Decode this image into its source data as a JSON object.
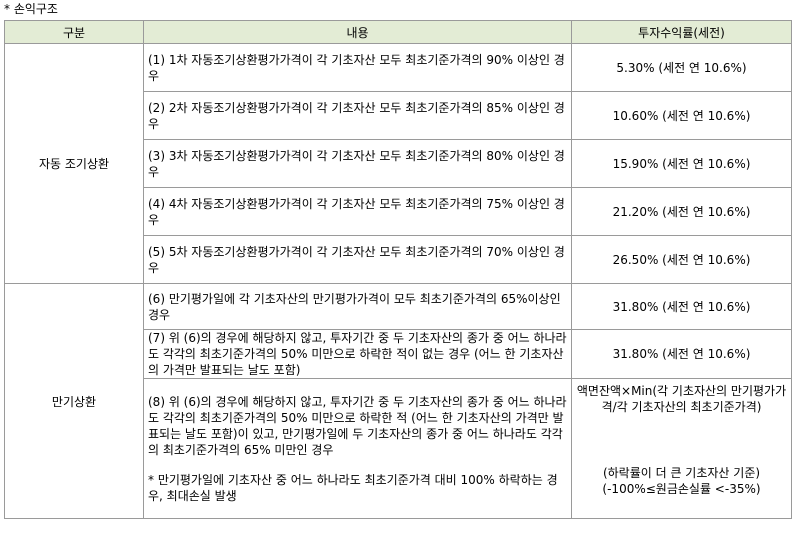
{
  "caption": "* 손익구조",
  "headers": [
    "구분",
    "내용",
    "투자수익률(세전)"
  ],
  "groups": {
    "early": "자동 조기상환",
    "maturity": "만기상환"
  },
  "rows": [
    {
      "content": "(1) 1차 자동조기상환평가가격이 각 기초자산 모두 최초기준가격의 90% 이상인 경우",
      "return": "5.30% (세전 연 10.6%)"
    },
    {
      "content": "(2) 2차 자동조기상환평가가격이 각 기초자산 모두 최초기준가격의 85% 이상인 경우",
      "return": "10.60% (세전 연 10.6%)"
    },
    {
      "content": "(3) 3차 자동조기상환평가가격이 각 기초자산 모두 최초기준가격의 80% 이상인 경우",
      "return": "15.90% (세전 연 10.6%)"
    },
    {
      "content": "(4) 4차 자동조기상환평가가격이 각 기초자산 모두 최초기준가격의 75% 이상인 경우",
      "return": "21.20% (세전 연 10.6%)"
    },
    {
      "content": "(5) 5차 자동조기상환평가가격이 각 기초자산 모두 최초기준가격의 70% 이상인 경우",
      "return": "26.50% (세전 연 10.6%)"
    },
    {
      "content": "(6) 만기평가일에 각 기초자산의 만기평가가격이 모두 최초기준가격의 65%이상인 경우",
      "return": "31.80% (세전 연 10.6%)"
    },
    {
      "content": "(7) 위 (6)의 경우에 해당하지 않고, 투자기간 중 두 기초자산의 종가 중 어느 하나라도 각각의 최초기준가격의 50% 미만으로 하락한 적이 없는 경우 (어느 한 기초자산의 가격만 발표되는 날도 포함)",
      "return": "31.80% (세전 연 10.6%)"
    },
    {
      "content": "(8) 위 (6)의 경우에 해당하지 않고, 투자기간 중 두 기초자산의 종가 중 어느 하나라도 각각의 최초기준가격의 50% 미만으로 하락한 적 (어느 한 기초자산의 가격만 발표되는 날도 포함)이 있고, 만기평가일에 두 기초자산의 종가 중 어느 하나라도 각각의 최초기준가격의 65% 미만인 경우",
      "note": "* 만기평가일에 기초자산 중 어느 하나라도 최초기준가격 대비 100% 하락하는 경우, 최대손실 발생",
      "return": "액면잔액×Min(각 기초자산의 만기평가가격/각 기초자산의 최초기준가격)",
      "return_note1": "(하락률이 더 큰 기초자산 기준)",
      "return_note2": "(-100%≤원금손실률 <-35%)"
    }
  ]
}
